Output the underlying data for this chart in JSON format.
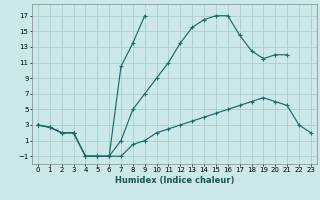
{
  "xlabel": "Humidex (Indice chaleur)",
  "bg_color": "#cce8e8",
  "grid_color": "#aad0d0",
  "line_color": "#1a6b6b",
  "curve1_x": [
    0,
    1,
    2,
    3,
    4,
    5,
    6,
    7,
    8,
    9,
    10,
    11,
    12,
    13,
    14,
    15,
    16,
    17,
    18,
    19,
    20,
    21,
    22,
    23
  ],
  "curve1_y": [
    3,
    2.7,
    2.0,
    2.0,
    -1.0,
    -1.0,
    -1.0,
    -1.0,
    0.5,
    1.0,
    2.0,
    2.5,
    3.0,
    3.5,
    4.0,
    4.5,
    5.0,
    5.5,
    6.0,
    6.5,
    6.0,
    5.5,
    3.0,
    2.0
  ],
  "curve2_x": [
    0,
    1,
    2,
    3,
    4,
    5,
    6,
    7,
    8,
    9,
    10,
    11,
    12,
    13,
    14,
    15,
    16,
    17,
    18,
    19,
    20,
    21
  ],
  "curve2_y": [
    3,
    2.7,
    2.0,
    2.0,
    -1.0,
    -1.0,
    -1.0,
    1.0,
    5.0,
    7.0,
    9.0,
    11.0,
    13.5,
    15.5,
    16.5,
    17.0,
    17.0,
    14.5,
    12.5,
    11.5,
    12.0,
    12.0
  ],
  "curve3_x": [
    0,
    1,
    2,
    3,
    4,
    5,
    6,
    7,
    8,
    9
  ],
  "curve3_y": [
    3,
    2.7,
    2.0,
    2.0,
    -1.0,
    -1.0,
    -1.0,
    10.5,
    13.5,
    17.0
  ],
  "xlim": [
    -0.5,
    23.5
  ],
  "ylim": [
    -2.0,
    18.5
  ],
  "yticks": [
    -1,
    1,
    3,
    5,
    7,
    9,
    11,
    13,
    15,
    17
  ],
  "xticks": [
    0,
    1,
    2,
    3,
    4,
    5,
    6,
    7,
    8,
    9,
    10,
    11,
    12,
    13,
    14,
    15,
    16,
    17,
    18,
    19,
    20,
    21,
    22,
    23
  ]
}
